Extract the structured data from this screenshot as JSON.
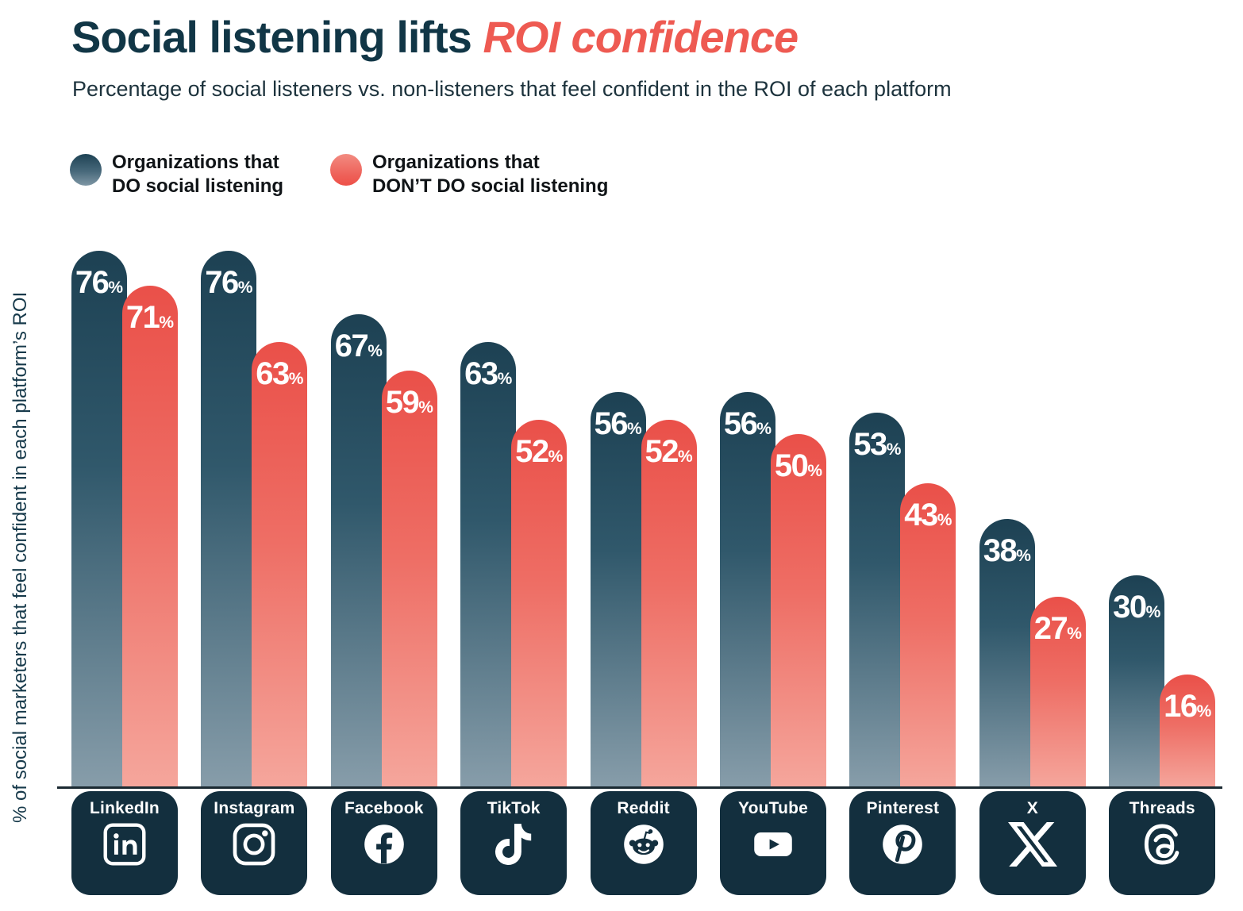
{
  "header": {
    "title_dark": "Social listening lifts",
    "title_accent": "ROI confidence",
    "subtitle": "Percentage of social listeners vs. non-listeners that feel confident in the ROI of each platform"
  },
  "legend": {
    "position": "top-left",
    "items": [
      {
        "label": "Organizations that\nDO social listening",
        "color_top": "#1d4254",
        "color_bottom": "#7f97a5"
      },
      {
        "label": "Organizations that\nDON’T DO social listening",
        "color_top": "#f28b81",
        "color_bottom": "#ed5048"
      }
    ]
  },
  "chart_data": {
    "type": "bar",
    "title": "Social listening lifts ROI confidence",
    "subtitle": "Percentage of social listeners vs. non-listeners that feel confident in the ROI of each platform",
    "xlabel": "",
    "ylabel": "% of social marketers that feel confident in each platform’s ROI",
    "unit": "%",
    "ylim": [
      0,
      80
    ],
    "grid": false,
    "legend_position": "top-left",
    "categories": [
      "LinkedIn",
      "Instagram",
      "Facebook",
      "TikTok",
      "Reddit",
      "YouTube",
      "Pinterest",
      "X",
      "Threads"
    ],
    "icons": [
      "linkedin-icon",
      "instagram-icon",
      "facebook-icon",
      "tiktok-icon",
      "reddit-icon",
      "youtube-icon",
      "pinterest-icon",
      "x-icon",
      "threads-icon"
    ],
    "series": [
      {
        "name": "Organizations that DO social listening",
        "color": "#1d4153",
        "color_fade": "#879daa",
        "values": [
          76,
          76,
          67,
          63,
          56,
          56,
          53,
          38,
          30
        ]
      },
      {
        "name": "Organizations that DON'T DO social listening",
        "color": "#ea5049",
        "color_fade": "#f5a69c",
        "values": [
          71,
          63,
          59,
          52,
          52,
          50,
          43,
          27,
          16
        ]
      }
    ]
  }
}
